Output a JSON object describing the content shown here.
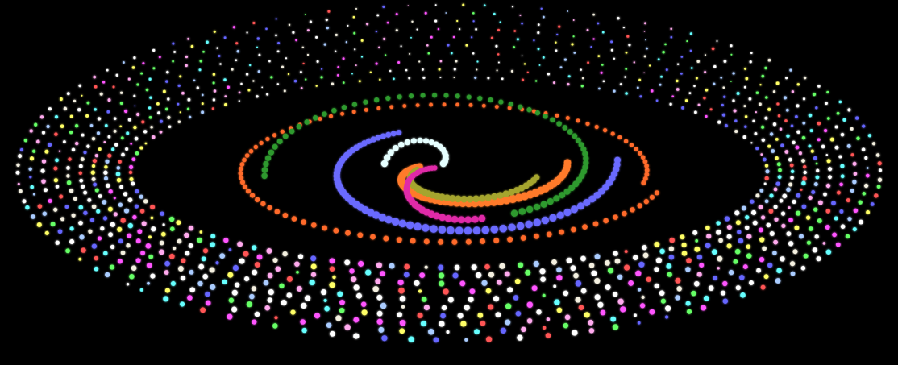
{
  "scene": {
    "background_color": "#000000",
    "subject": "spiral-galaxy-of-colored-dots"
  },
  "outer_field": {
    "rings": 10,
    "dots_per_ring": 110,
    "palette": [
      "#ffffff",
      "#ffffff",
      "#ffffff",
      "#f4f0e0",
      "#ffff66",
      "#66ffff",
      "#ff55ff",
      "#6666ff",
      "#66ff66",
      "#ff5555",
      "#ffaaee",
      "#aaccff"
    ]
  },
  "spiral_arms": [
    {
      "name": "orange-outer-arm",
      "color": "#ff6a2a",
      "dots": 95
    },
    {
      "name": "blue-arm",
      "color": "#6b6bff",
      "dots": 70
    },
    {
      "name": "green-arm",
      "color": "#2f9a2f",
      "dots": 60
    },
    {
      "name": "orange-inner-arm",
      "color": "#ff7a2a",
      "dots": 55
    },
    {
      "name": "olive-arm",
      "color": "#a5a52e",
      "dots": 38
    },
    {
      "name": "magenta-arm",
      "color": "#e02aa8",
      "dots": 32
    },
    {
      "name": "white-core-arm",
      "color": "#e6ffff",
      "dots": 18
    }
  ]
}
